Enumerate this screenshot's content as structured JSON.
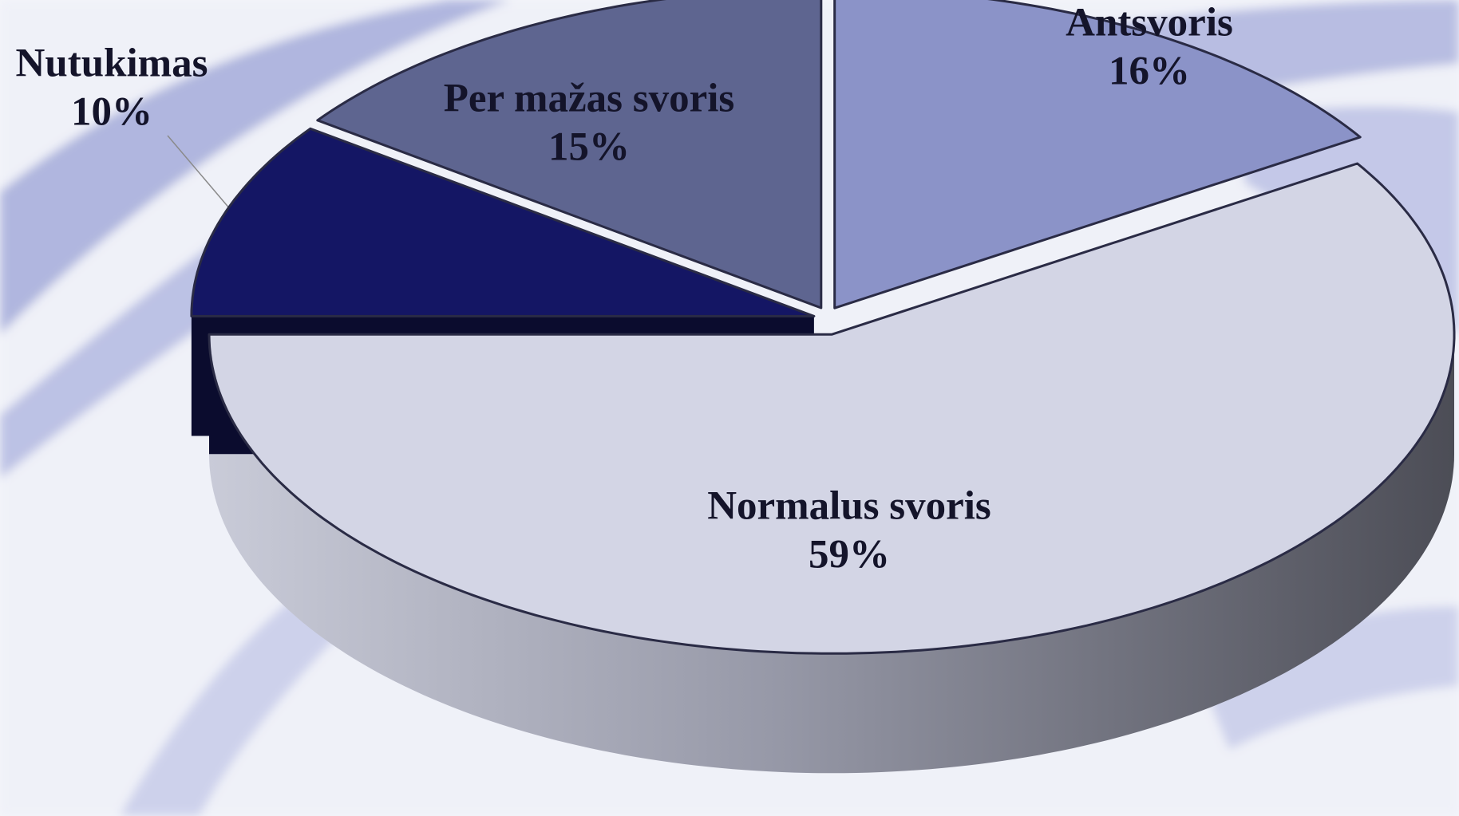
{
  "chart_data": {
    "type": "pie",
    "categories": [
      "Antsvoris",
      "Normalus svoris",
      "Nutukimas",
      "Per mažas svoris"
    ],
    "values": [
      16,
      59,
      10,
      15
    ],
    "value_labels": [
      "16%",
      "59%",
      "10%",
      "15%"
    ],
    "colors": [
      "#8b93c8",
      "#d3d5e5",
      "#141664",
      "#5e6590"
    ]
  }
}
